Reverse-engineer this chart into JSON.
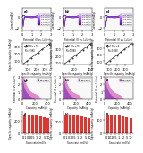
{
  "fig_labels_row1": [
    "a)",
    "b)",
    "c)"
  ],
  "fig_labels_row2": [
    "d)",
    "e)",
    "f)"
  ],
  "fig_labels_row3": [
    "g)",
    "h)",
    "i)"
  ],
  "fig_labels_row4": [
    "j)",
    "k)",
    "l)"
  ],
  "row1_xlabel": "Potential (V vs. Li/Li+)",
  "row1_ylabel": "Current (mA/g)",
  "row2_xlabel": "Specific capacity (mAh/g)",
  "row2_ylabel": "Specific capacity (mAh/g)",
  "row3_xlabel": "Potential (V vs. Li/Li+)",
  "row3_ylabel": "Capacity (mAh/g)",
  "row4_xlabel": "Scan rate (mV/s)",
  "row4_ylabel": "Specific capacity (mAh/g)",
  "cv_colors": [
    "#9370DB",
    "#8A6DB8",
    "#7B68A5",
    "#6C5C92",
    "#5D507F",
    "#4E446C"
  ],
  "cv_legend": [
    "0.1 mV/s",
    "0.2 mV/s",
    "0.5 mV/s",
    "1.0 mV/s",
    "2.0 mV/s",
    "5.0 mV/s"
  ],
  "scatter_colors": [
    "#333333"
  ],
  "area_colors_charge": [
    "#FF69B4",
    "#FF1493"
  ],
  "area_colors_discharge": [
    "#9400D3",
    "#8B008B"
  ],
  "bar_color": "#E8312A",
  "background": "#ffffff"
}
